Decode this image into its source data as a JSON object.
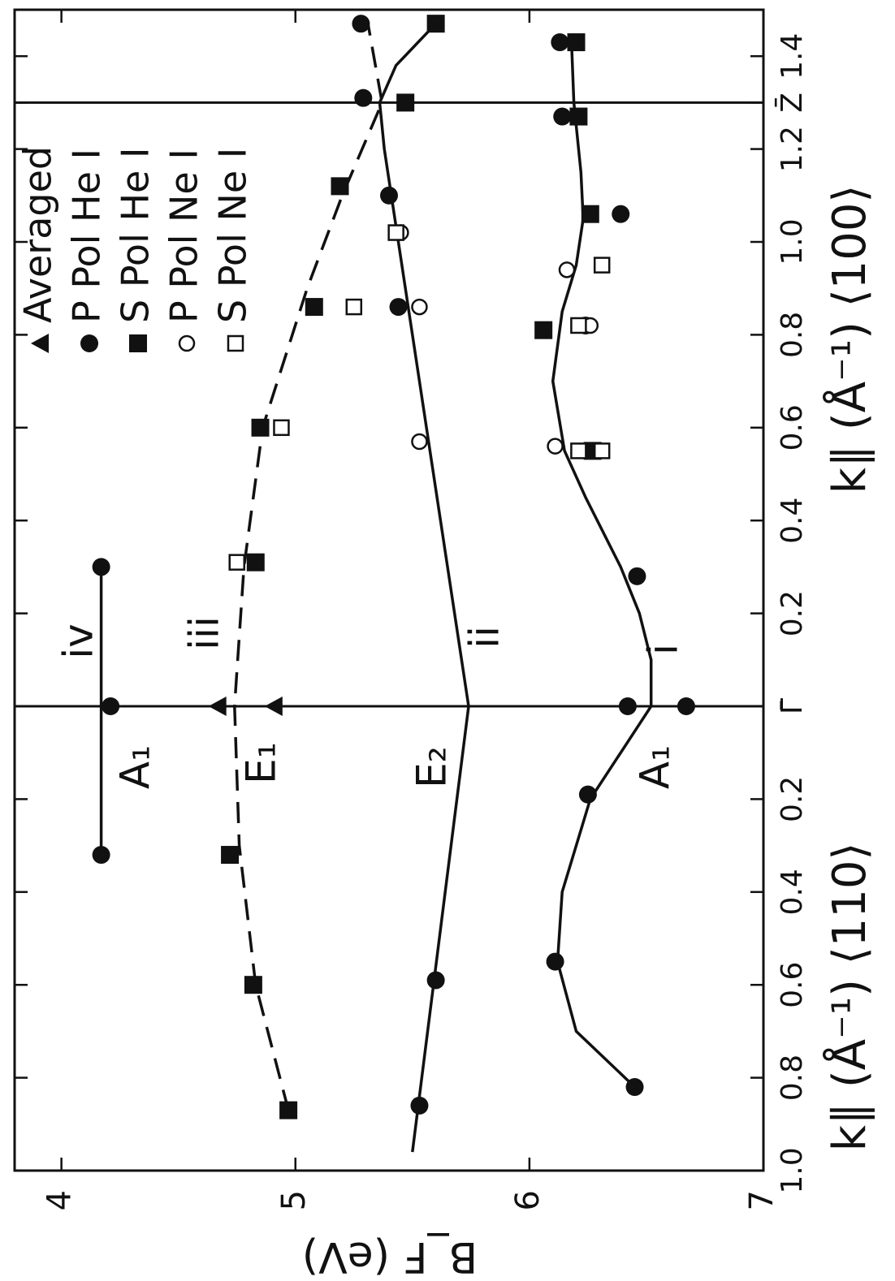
{
  "chart_data": {
    "type": "scatter",
    "xlabels": [
      "k∥ (Å⁻¹) ⟨110⟩",
      "k∥ (Å⁻¹) ⟨100⟩"
    ],
    "ylabel": "B_F (eV)",
    "xlim": [
      -1.0,
      1.5
    ],
    "ylim": [
      3.8,
      7.0
    ],
    "xticks": [
      {
        "value": -1.0,
        "label": "1.0"
      },
      {
        "value": -0.8,
        "label": "0.8"
      },
      {
        "value": -0.6,
        "label": "0.6"
      },
      {
        "value": -0.4,
        "label": "0.4"
      },
      {
        "value": -0.2,
        "label": "0.2"
      },
      {
        "value": 0,
        "label": "Γ̄"
      },
      0.2,
      0.4,
      0.6,
      0.8,
      {
        "value": 1.0,
        "label": "1.0"
      },
      1.2,
      {
        "value": 1.3,
        "label": "Z̄"
      },
      1.4
    ],
    "yticks": [
      4,
      5,
      6,
      7
    ],
    "vlines": [
      0,
      1.3
    ],
    "series": [
      {
        "name": "Averaged",
        "marker": "triangle",
        "color": "#111111",
        "x": [
          0,
          0
        ],
        "values": [
          4.67,
          4.91
        ]
      },
      {
        "name": "P Pol He I",
        "marker": "circle",
        "color": "#111111",
        "x": [
          -0.32,
          0,
          0.3,
          1.31,
          1.47,
          1.1,
          0.86,
          -0.86,
          -0.59,
          1.43,
          1.27,
          1.06,
          0.82,
          0.28,
          0,
          0,
          -0.19,
          -0.55,
          -0.82
        ],
        "values": [
          4.17,
          4.21,
          4.17,
          5.29,
          5.28,
          5.4,
          5.44,
          5.53,
          5.6,
          6.13,
          6.14,
          6.39,
          6.24,
          6.46,
          6.42,
          6.67,
          6.25,
          6.11,
          6.45
        ]
      },
      {
        "name": "S Pol He I",
        "marker": "square",
        "color": "#111111",
        "x": [
          -0.32,
          -0.6,
          -0.87,
          0.31,
          0.6,
          0.86,
          1.12,
          1.3,
          1.47,
          1.43,
          1.27,
          1.06,
          0.81,
          0.55
        ],
        "values": [
          4.72,
          4.82,
          4.97,
          4.83,
          4.85,
          5.08,
          5.19,
          5.47,
          5.6,
          6.2,
          6.21,
          6.26,
          6.06,
          6.27
        ]
      },
      {
        "name": "P Pol Ne I",
        "marker": "open-circle",
        "color": "#111111",
        "x": [
          0.86,
          1.02,
          0.57,
          0.56,
          0.94,
          0.82
        ],
        "values": [
          5.53,
          5.45,
          5.53,
          6.11,
          6.16,
          6.26
        ]
      },
      {
        "name": "S Pol Ne I",
        "marker": "open-square",
        "color": "#111111",
        "x": [
          0.31,
          0.6,
          0.86,
          1.02,
          0.55,
          0.82,
          0.95,
          0.55
        ],
        "values": [
          4.75,
          4.94,
          5.25,
          5.43,
          6.31,
          6.21,
          6.31,
          6.21
        ]
      }
    ],
    "curves": [
      {
        "style": "solid",
        "x": [
          -0.32,
          0.3
        ],
        "values": [
          4.17,
          4.17
        ]
      },
      {
        "style": "dashed",
        "x": [
          -0.87,
          -0.6,
          -0.3,
          0,
          0.3,
          0.6,
          0.9,
          1.1,
          1.3,
          1.47
        ],
        "values": [
          4.97,
          4.83,
          4.76,
          4.74,
          4.78,
          4.86,
          5.05,
          5.2,
          5.37,
          5.31
        ]
      },
      {
        "style": "solid",
        "x": [
          -0.96,
          0,
          1.2,
          1.3,
          1.38,
          1.47
        ],
        "values": [
          5.5,
          5.74,
          5.38,
          5.36,
          5.43,
          5.6
        ]
      },
      {
        "style": "solid",
        "x": [
          -0.82,
          -0.7,
          -0.55,
          -0.4,
          -0.2,
          0,
          0.1,
          0.2,
          0.3,
          0.45,
          0.55,
          0.7,
          0.85,
          0.95,
          1.05,
          1.15,
          1.3,
          1.43
        ],
        "values": [
          6.45,
          6.2,
          6.12,
          6.14,
          6.26,
          6.52,
          6.52,
          6.47,
          6.39,
          6.24,
          6.15,
          6.1,
          6.14,
          6.2,
          6.23,
          6.22,
          6.19,
          6.18
        ]
      }
    ],
    "annotations": [
      "iv",
      "iii",
      "ii",
      "i",
      "A₁",
      "E₁",
      "E₂",
      "A₁"
    ]
  }
}
